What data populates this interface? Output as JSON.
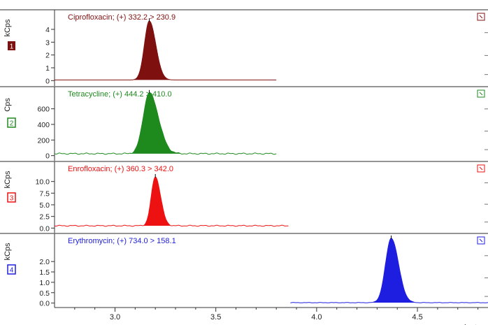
{
  "chart_data": {
    "type": "line",
    "x_unit_label": "minutes",
    "x_ticks": [
      3.0,
      3.5,
      4.0,
      4.5
    ],
    "x_tick_labels": [
      "3.0",
      "3.5",
      "4.0",
      "4.5"
    ],
    "xlim": [
      2.7,
      4.85
    ],
    "panels": [
      {
        "index_label": "1",
        "ylabel": "kCps",
        "title": "Ciprofloxacin;  (+) 332.2 > 230.9",
        "color": "#7f1010",
        "y_ticks": [
          0,
          1,
          2,
          3,
          4
        ],
        "y_tick_labels": [
          "0",
          "1",
          "2",
          "3",
          "4"
        ],
        "ylim": [
          -0.2,
          5.2
        ],
        "baseline": 0.05,
        "trace_range": [
          2.7,
          3.8
        ],
        "peak": {
          "rt": 3.17,
          "height": 4.6,
          "sigma_left": 0.024,
          "sigma_right": 0.032
        },
        "noise": 0.0
      },
      {
        "index_label": "2",
        "ylabel": "Cps",
        "title": "Tetracycline;  (+) 444.2 > 410.0",
        "color": "#1e8a1e",
        "y_ticks": [
          0,
          200,
          400,
          600
        ],
        "y_tick_labels": [
          "0",
          "200",
          "400",
          "600"
        ],
        "ylim": [
          -30,
          830
        ],
        "baseline": 25,
        "trace_range": [
          2.7,
          3.8
        ],
        "peak": {
          "rt": 3.17,
          "height": 780,
          "sigma_left": 0.03,
          "sigma_right": 0.045
        },
        "noise": 9
      },
      {
        "index_label": "3",
        "ylabel": "kCps",
        "title": "Enrofloxacin;  (+) 360.3 > 342.0",
        "color": "#ee1111",
        "y_ticks": [
          0.0,
          2.5,
          5.0,
          7.5,
          10.0
        ],
        "y_tick_labels": [
          "0.0",
          "2.5",
          "5.0",
          "7.5",
          "10.0"
        ],
        "ylim": [
          -0.4,
          13.4
        ],
        "baseline": 0.5,
        "trace_range": [
          2.7,
          3.86
        ],
        "peak": {
          "rt": 3.2,
          "height": 10.5,
          "sigma_left": 0.02,
          "sigma_right": 0.026
        },
        "noise": 0.12
      },
      {
        "index_label": "4",
        "ylabel": "kCps",
        "title": "Erythromycin;  (+) 734.0 > 158.1",
        "color": "#1e1ee0",
        "y_ticks": [
          0.0,
          0.5,
          1.0,
          1.5,
          2.0
        ],
        "y_tick_labels": [
          "0.0",
          "0.5",
          "1.0",
          "1.5",
          "2.0"
        ],
        "ylim": [
          -0.08,
          3.15
        ],
        "baseline": 0.02,
        "trace_range": [
          3.87,
          4.85
        ],
        "peak": {
          "rt": 4.37,
          "height": 3.1,
          "sigma_left": 0.028,
          "sigma_right": 0.036
        },
        "noise": 0.01
      }
    ]
  }
}
